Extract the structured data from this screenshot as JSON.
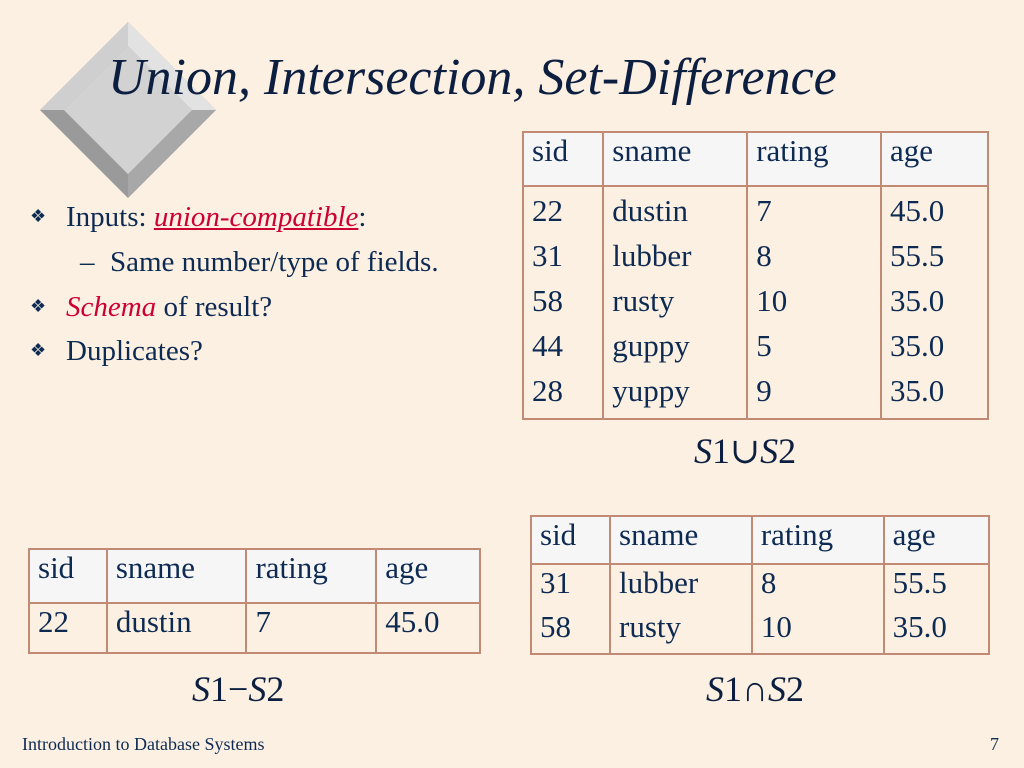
{
  "slide": {
    "title": "Union, Intersection, Set-Difference",
    "footer": "Introduction to Database Systems",
    "page_number": "7"
  },
  "bullets": {
    "inputs_prefix": "Inputs: ",
    "inputs_term": "union-compatible",
    "inputs_suffix": ":",
    "same_number": "Same number/type  of fields.",
    "schema_term": "Schema",
    "schema_rest": " of result?",
    "duplicates": "Duplicates?"
  },
  "tables": {
    "union": {
      "headers": [
        "sid",
        "sname",
        "rating",
        "age"
      ],
      "rows": [
        [
          "22",
          "dustin",
          "7",
          "45.0"
        ],
        [
          "31",
          "lubber",
          "8",
          "55.5"
        ],
        [
          "58",
          "rusty",
          "10",
          "35.0"
        ],
        [
          "44",
          "guppy",
          "5",
          "35.0"
        ],
        [
          "28",
          "yuppy",
          "9",
          "35.0"
        ]
      ],
      "caption": {
        "left": "S",
        "one": "1",
        "op": "∪",
        "right": "S",
        "two": "2"
      }
    },
    "intersection": {
      "headers": [
        "sid",
        "sname",
        "rating",
        "age"
      ],
      "rows": [
        [
          "31",
          "lubber",
          "8",
          "55.5"
        ],
        [
          "58",
          "rusty",
          "10",
          "35.0"
        ]
      ],
      "caption": {
        "left": "S",
        "one": "1",
        "op": "∩",
        "right": "S",
        "two": "2"
      }
    },
    "difference": {
      "headers": [
        "sid",
        "sname",
        "rating",
        "age"
      ],
      "rows": [
        [
          "22",
          "dustin",
          "7",
          "45.0"
        ]
      ],
      "caption": {
        "left": "S",
        "one": "1",
        "op": "−",
        "right": "S",
        "two": "2"
      }
    }
  },
  "colors": {
    "background": "#fcf0e2",
    "text": "#0d2a52",
    "accent": "#cc0033",
    "table_border": "#c08a74"
  },
  "icons": {
    "bullet": "diamond-bullet-icon",
    "decoration": "bevel-diamond-icon"
  }
}
